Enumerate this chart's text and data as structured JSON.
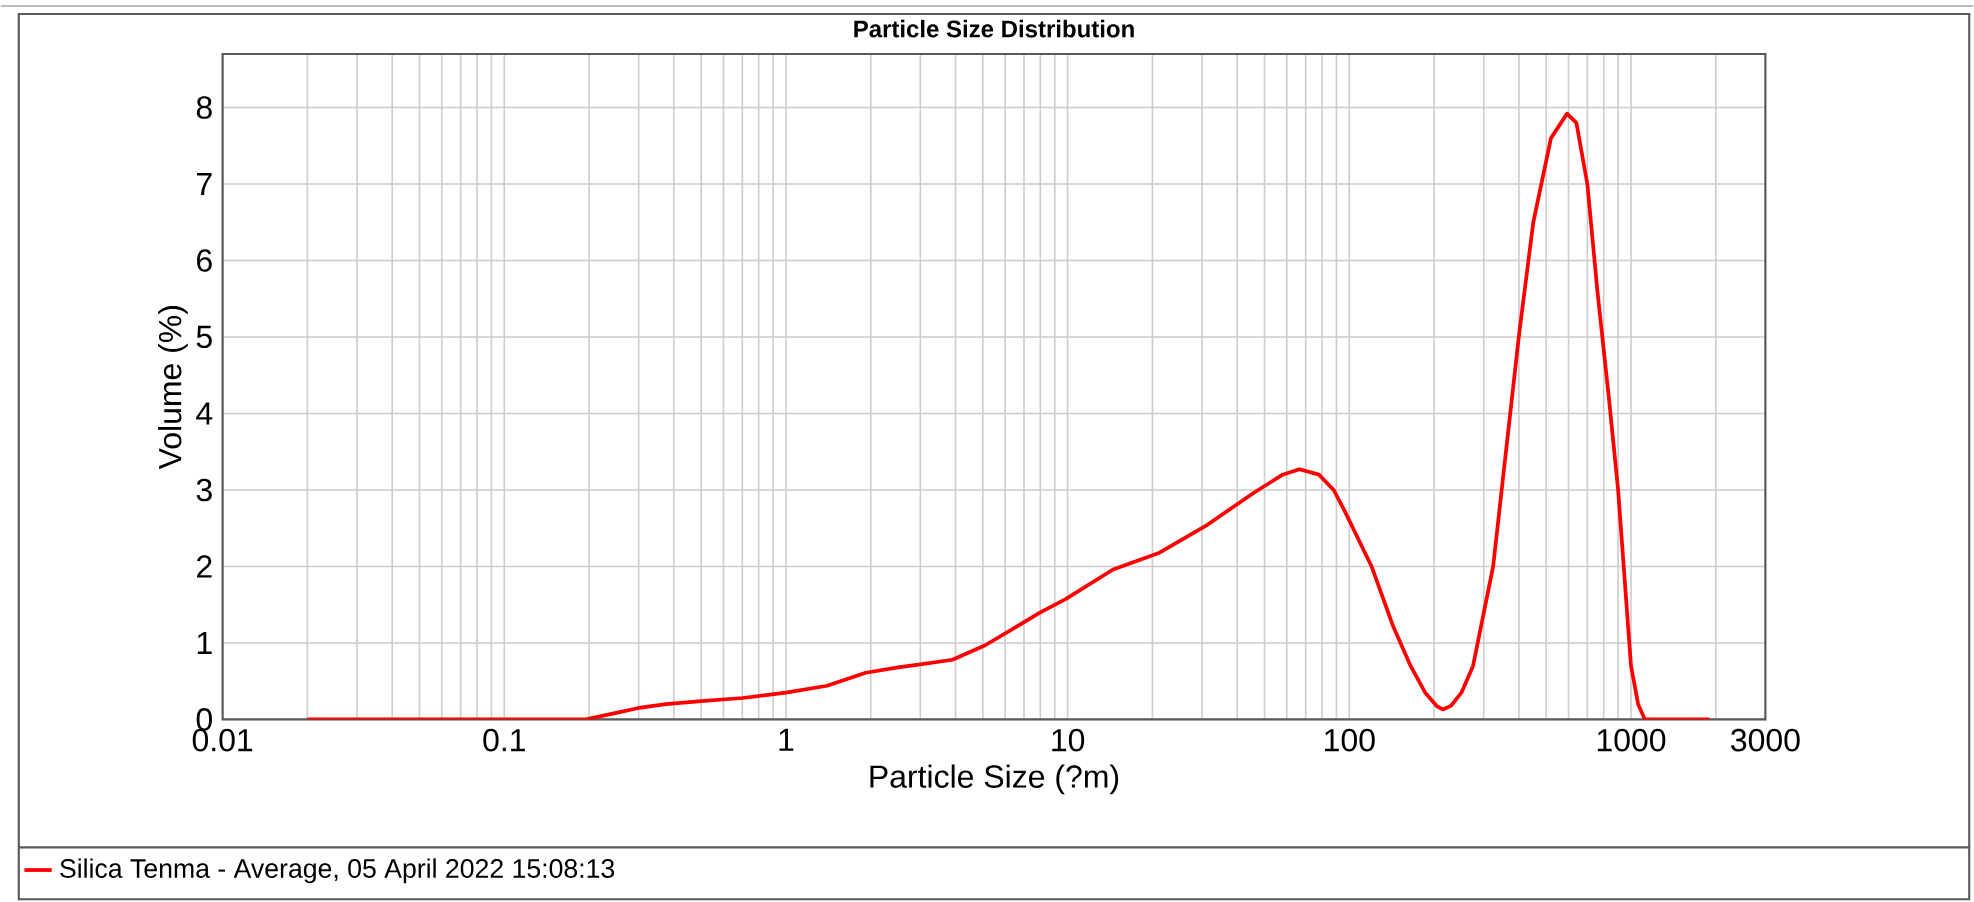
{
  "chart_data": {
    "type": "line",
    "title": "Particle Size Distribution",
    "xlabel": "Particle Size (?m)",
    "ylabel": "Volume (%)",
    "log": "x",
    "xlim": [
      0.01,
      3000
    ],
    "ylim": [
      0,
      8.7
    ],
    "xticks": [
      0.01,
      0.1,
      1,
      10,
      100,
      1000,
      3000
    ],
    "yticks": [
      0,
      1,
      2,
      3,
      4,
      5,
      6,
      7,
      8
    ],
    "grid": true,
    "legend": "bottom",
    "marker": "none",
    "line_style": "solid",
    "series": [
      {
        "name": "Silica Tenma - Average, 05 April 2022 15:08:13",
        "color": "#ff0000",
        "x": [
          0.02,
          0.05,
          0.1,
          0.195,
          0.245,
          0.3,
          0.375,
          0.5,
          0.7,
          1.0,
          1.4,
          1.92,
          2.5,
          3.0,
          3.9,
          5.1,
          6.5,
          8.0,
          9.8,
          14.5,
          21.2,
          30.9,
          45.7,
          58,
          66.5,
          78,
          88,
          97,
          120,
          143,
          165,
          186,
          205,
          215,
          230,
          250,
          275,
          324,
          401,
          450,
          520,
          593,
          640,
          700,
          760,
          835,
          900,
          1000,
          1060,
          1120,
          1300,
          1900
        ],
        "values": [
          0,
          0,
          0,
          0,
          0.08,
          0.15,
          0.2,
          0.24,
          0.28,
          0.35,
          0.44,
          0.61,
          0.68,
          0.72,
          0.78,
          0.97,
          1.2,
          1.4,
          1.57,
          1.96,
          2.18,
          2.53,
          2.96,
          3.2,
          3.27,
          3.2,
          3.0,
          2.7,
          2.0,
          1.22,
          0.7,
          0.35,
          0.17,
          0.13,
          0.18,
          0.35,
          0.7,
          2.0,
          5.05,
          6.5,
          7.6,
          7.92,
          7.8,
          7.0,
          5.6,
          4.2,
          3.0,
          0.7,
          0.2,
          0,
          0,
          0
        ]
      }
    ]
  }
}
